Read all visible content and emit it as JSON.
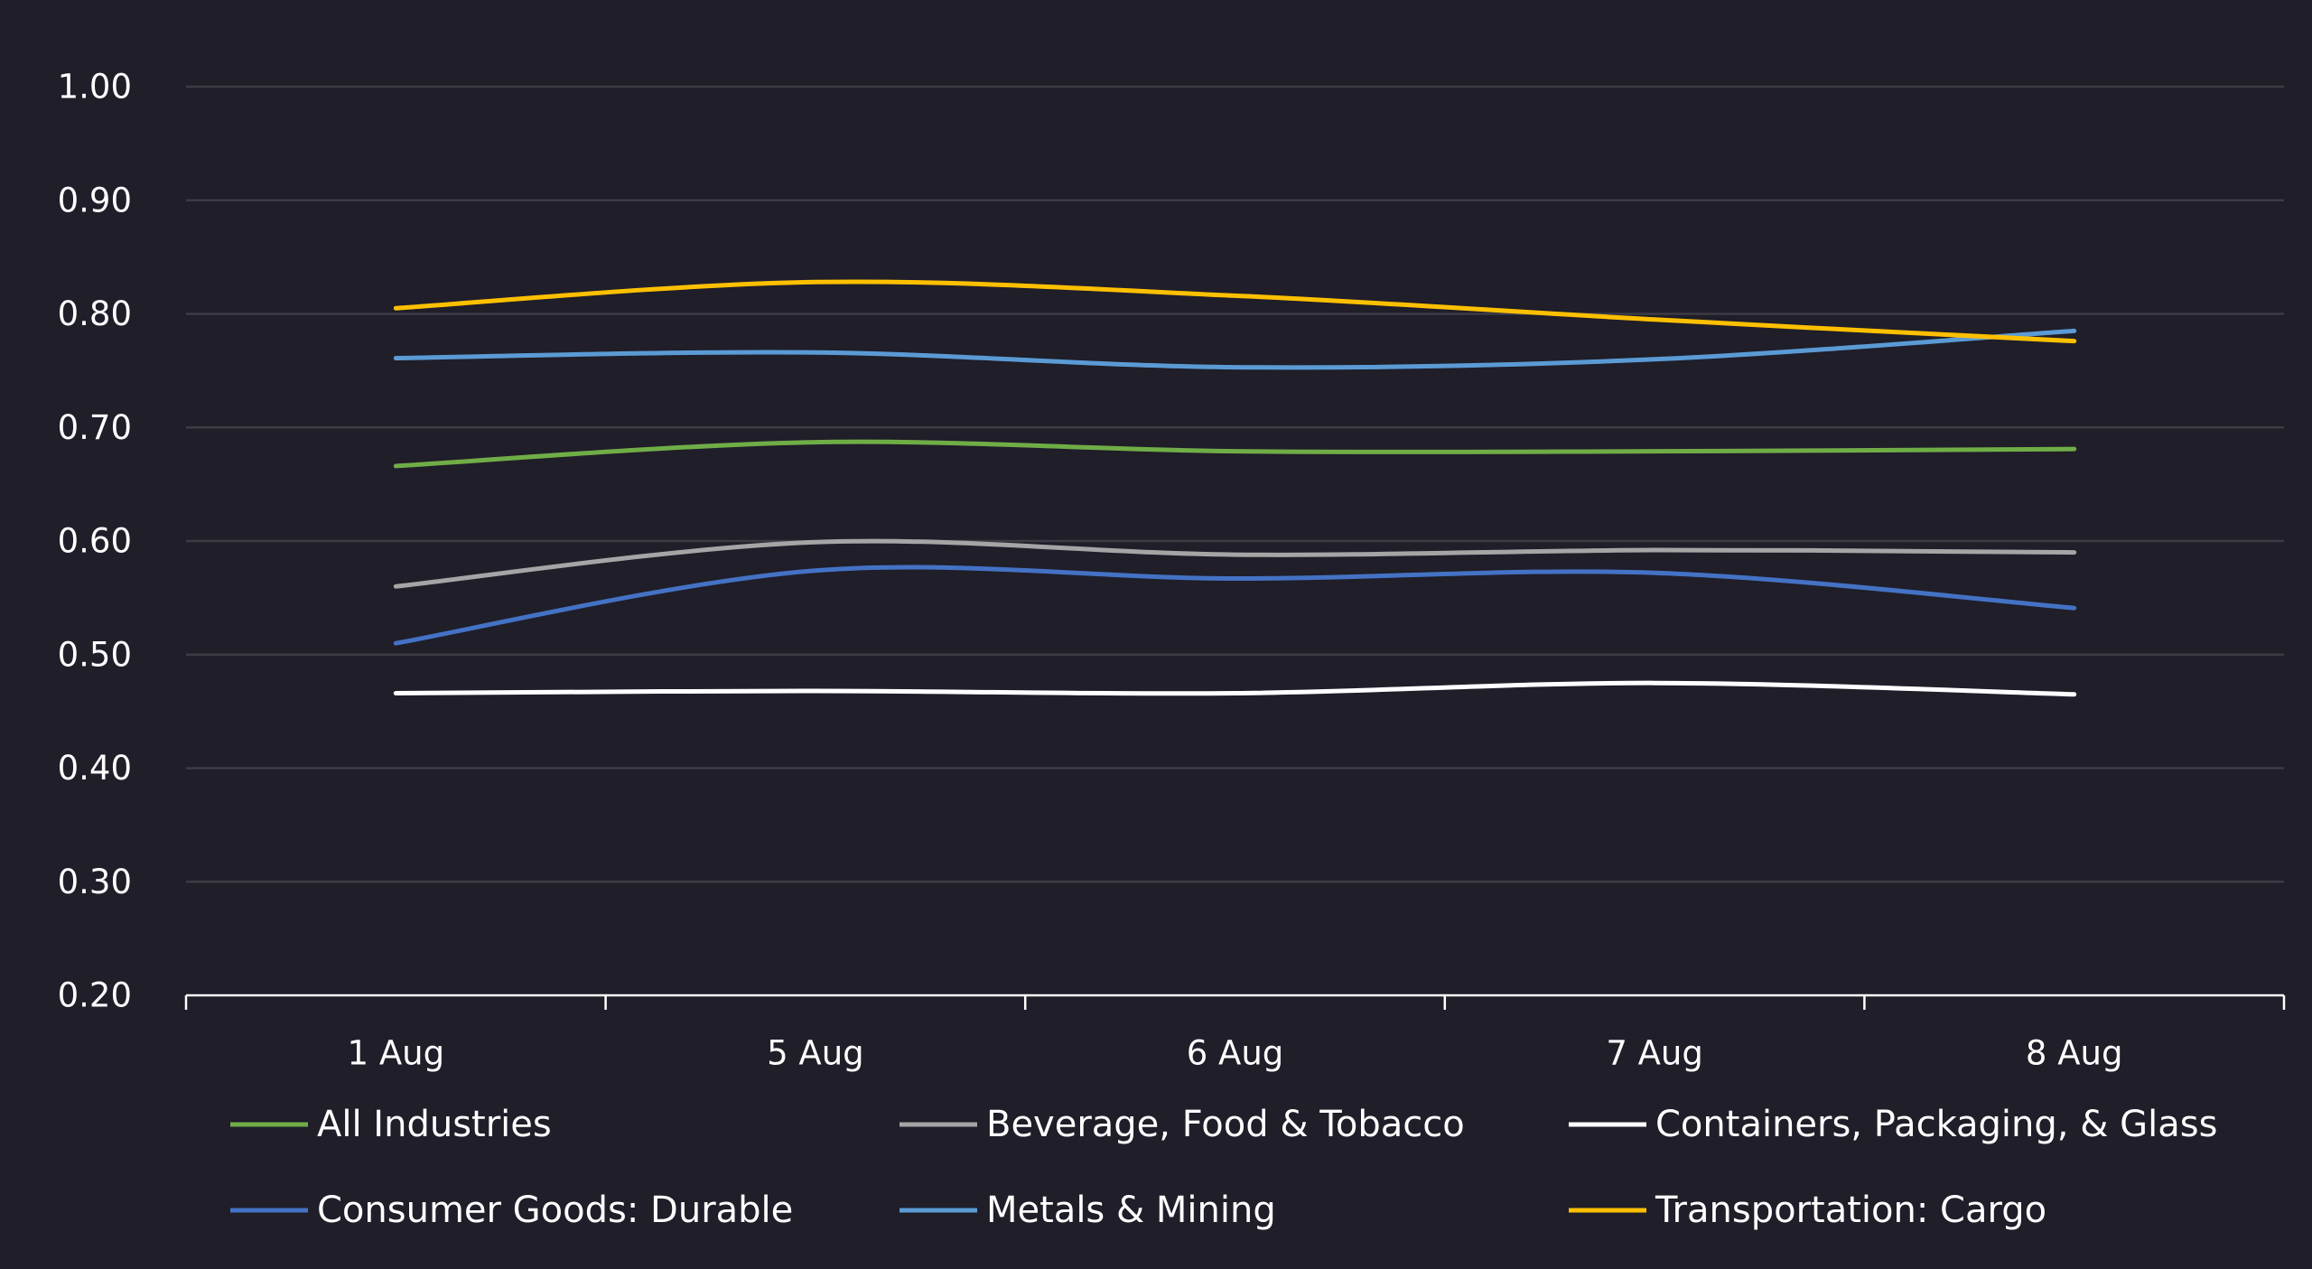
{
  "chart_data": {
    "type": "line",
    "title": "",
    "xlabel": "",
    "ylabel": "",
    "categories": [
      "1 Aug",
      "5 Aug",
      "6 Aug",
      "7 Aug",
      "8 Aug"
    ],
    "ylim": [
      0.2,
      1.0
    ],
    "y_ticks": [
      "0.20",
      "0.30",
      "0.40",
      "0.50",
      "0.60",
      "0.70",
      "0.80",
      "0.90",
      "1.00"
    ],
    "grid": true,
    "smooth": true,
    "legend_position": "bottom",
    "series": [
      {
        "name": "All Industries",
        "color": "#70ad47",
        "values": [
          0.666,
          0.687,
          0.679,
          0.679,
          0.681
        ]
      },
      {
        "name": "Beverage, Food & Tobacco",
        "color": "#a5a5a5",
        "values": [
          0.56,
          0.599,
          0.588,
          0.592,
          0.59
        ]
      },
      {
        "name": "Containers, Packaging, & Glass",
        "color": "#ffffff",
        "values": [
          0.466,
          0.468,
          0.466,
          0.475,
          0.465
        ]
      },
      {
        "name": "Consumer Goods: Durable",
        "color": "#4472c4",
        "values": [
          0.51,
          0.574,
          0.567,
          0.572,
          0.541
        ]
      },
      {
        "name": "Metals & Mining",
        "color": "#5b9bd5",
        "values": [
          0.761,
          0.766,
          0.753,
          0.76,
          0.785
        ]
      },
      {
        "name": "Transportation: Cargo",
        "color": "#ffc000",
        "values": [
          0.805,
          0.828,
          0.816,
          0.795,
          0.776
        ]
      }
    ]
  },
  "colors": {
    "background": "#1f1e29",
    "gridline": "#3d3c44",
    "axis": "#ffffff",
    "text": "#ffffff"
  }
}
